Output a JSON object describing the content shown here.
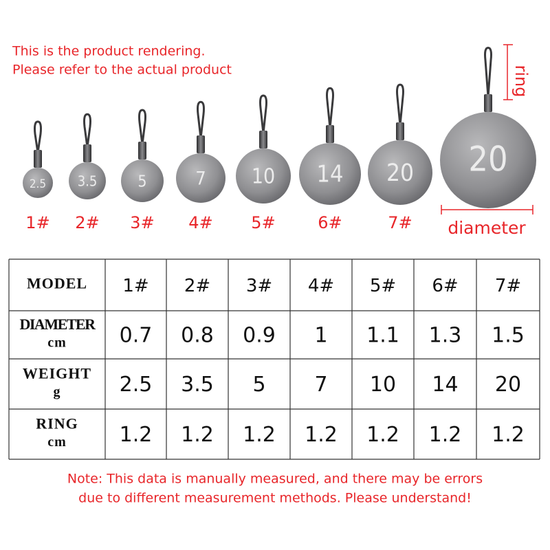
{
  "notice": [
    "This is the product rendering.",
    "Please refer to the actual product"
  ],
  "products": [
    {
      "weight_label": "2.5",
      "model": "1#"
    },
    {
      "weight_label": "3.5",
      "model": "2#"
    },
    {
      "weight_label": "5",
      "model": "3#"
    },
    {
      "weight_label": "7",
      "model": "4#"
    },
    {
      "weight_label": "10",
      "model": "5#"
    },
    {
      "weight_label": "14",
      "model": "6#"
    },
    {
      "weight_label": "20",
      "model": "7#"
    }
  ],
  "featured": {
    "weight_label": "20",
    "ring_label": "ring",
    "diameter_label": "diameter"
  },
  "table": {
    "rows": [
      {
        "header": [
          "MODEL"
        ],
        "cells": [
          "1#",
          "2#",
          "3#",
          "4#",
          "5#",
          "6#",
          "7#"
        ]
      },
      {
        "header": [
          "DIAMETER",
          "cm"
        ],
        "cells": [
          0.7,
          0.8,
          0.9,
          1,
          1.1,
          1.3,
          1.5
        ]
      },
      {
        "header": [
          "WEIGHT",
          "g"
        ],
        "cells": [
          2.5,
          3.5,
          5,
          7,
          10,
          14,
          20
        ]
      },
      {
        "header": [
          "RING",
          "cm"
        ],
        "cells": [
          1.2,
          1.2,
          1.2,
          1.2,
          1.2,
          1.2,
          1.2
        ]
      }
    ]
  },
  "note": [
    "Note: This data is manually measured, and there may be errors",
    "due to different measurement methods. Please understand!"
  ]
}
